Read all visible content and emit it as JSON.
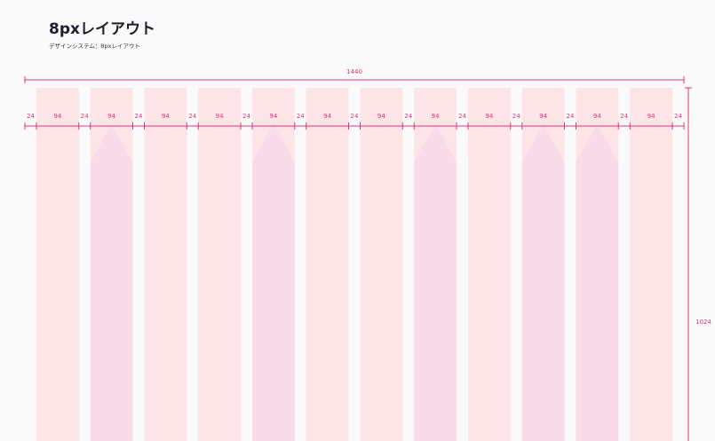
{
  "header": {
    "title": "8pxレイアウト",
    "subtitle": "デザインシステム：8pxレイアウト"
  },
  "frame": {
    "width_label": "1440",
    "height_label": "1024"
  },
  "grid": {
    "columns": [
      {
        "label": "94",
        "color": "#fde4e6"
      },
      {
        "label": "94",
        "color": "#f9dbea"
      },
      {
        "label": "94",
        "color": "#fde4e6"
      },
      {
        "label": "94",
        "color": "#fde4e6"
      },
      {
        "label": "94",
        "color": "#f9dbea"
      },
      {
        "label": "94",
        "color": "#fde4e6"
      },
      {
        "label": "94",
        "color": "#fde4e6"
      },
      {
        "label": "94",
        "color": "#f9dbea"
      },
      {
        "label": "94",
        "color": "#fde4e6"
      },
      {
        "label": "94",
        "color": "#f9dbea"
      },
      {
        "label": "94",
        "color": "#f9dbea"
      },
      {
        "label": "94",
        "color": "#fde4e6"
      }
    ],
    "gutters": [
      "24",
      "24",
      "24",
      "24",
      "24",
      "24",
      "24",
      "24",
      "24",
      "24",
      "24",
      "24",
      "24"
    ]
  }
}
